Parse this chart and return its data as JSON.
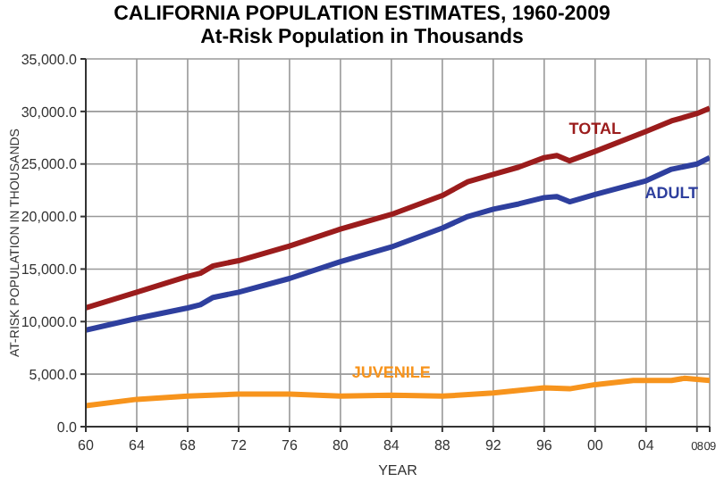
{
  "chart_data": {
    "type": "line",
    "title": "CALIFORNIA POPULATION ESTIMATES, 1960-2009",
    "subtitle": "At-Risk Population in Thousands",
    "xlabel": "YEAR",
    "ylabel": "AT-RISK POPULATION IN THOUSANDS",
    "series": [
      {
        "name": "TOTAL",
        "color": "#9b1c1c",
        "x": [
          1960,
          1964,
          1968,
          1969,
          1970,
          1972,
          1976,
          1980,
          1984,
          1988,
          1990,
          1992,
          1994,
          1996,
          1997,
          1998,
          2000,
          2004,
          2006,
          2008,
          2009
        ],
        "values": [
          11300,
          12800,
          14300,
          14600,
          15300,
          15800,
          17200,
          18800,
          20200,
          22000,
          23300,
          24000,
          24700,
          25600,
          25800,
          25300,
          26200,
          28100,
          29100,
          29800,
          30300
        ]
      },
      {
        "name": "ADULT",
        "color": "#2e3f9e",
        "x": [
          1960,
          1964,
          1968,
          1969,
          1970,
          1972,
          1976,
          1980,
          1984,
          1988,
          1990,
          1992,
          1994,
          1996,
          1997,
          1998,
          2000,
          2004,
          2006,
          2008,
          2009
        ],
        "values": [
          9200,
          10300,
          11300,
          11600,
          12300,
          12800,
          14100,
          15700,
          17100,
          18900,
          20000,
          20700,
          21200,
          21800,
          21900,
          21400,
          22100,
          23400,
          24500,
          25000,
          25600
        ]
      },
      {
        "name": "JUVENILE",
        "color": "#f7941d",
        "x": [
          1960,
          1964,
          1968,
          1972,
          1976,
          1980,
          1984,
          1988,
          1992,
          1996,
          1998,
          2000,
          2003,
          2006,
          2007,
          2009
        ],
        "values": [
          2000,
          2600,
          2900,
          3100,
          3100,
          2900,
          3000,
          2900,
          3200,
          3700,
          3600,
          4000,
          4400,
          4400,
          4600,
          4400
        ]
      }
    ],
    "xlim": [
      1960,
      2009
    ],
    "xticks": [
      {
        "value": 1960,
        "label": "60"
      },
      {
        "value": 1964,
        "label": "64"
      },
      {
        "value": 1968,
        "label": "68"
      },
      {
        "value": 1972,
        "label": "72"
      },
      {
        "value": 1976,
        "label": "76"
      },
      {
        "value": 1980,
        "label": "80"
      },
      {
        "value": 1984,
        "label": "84"
      },
      {
        "value": 1988,
        "label": "88"
      },
      {
        "value": 1992,
        "label": "92"
      },
      {
        "value": 1996,
        "label": "96"
      },
      {
        "value": 2000,
        "label": "00"
      },
      {
        "value": 2004,
        "label": "04"
      },
      {
        "value": 2008,
        "label": "08"
      },
      {
        "value": 2009,
        "label": "09"
      }
    ],
    "ylim": [
      0,
      35000
    ],
    "yticks": [
      {
        "value": 0,
        "label": "0.0"
      },
      {
        "value": 5000,
        "label": "5,000.0"
      },
      {
        "value": 10000,
        "label": "10,000.0"
      },
      {
        "value": 15000,
        "label": "15,000.0"
      },
      {
        "value": 20000,
        "label": "20,000.0"
      },
      {
        "value": 25000,
        "label": "25,000.0"
      },
      {
        "value": 30000,
        "label": "30,000.0"
      },
      {
        "value": 35000,
        "label": "35,000.0"
      }
    ],
    "grid": true,
    "marker": "none",
    "line_style": "solid"
  }
}
